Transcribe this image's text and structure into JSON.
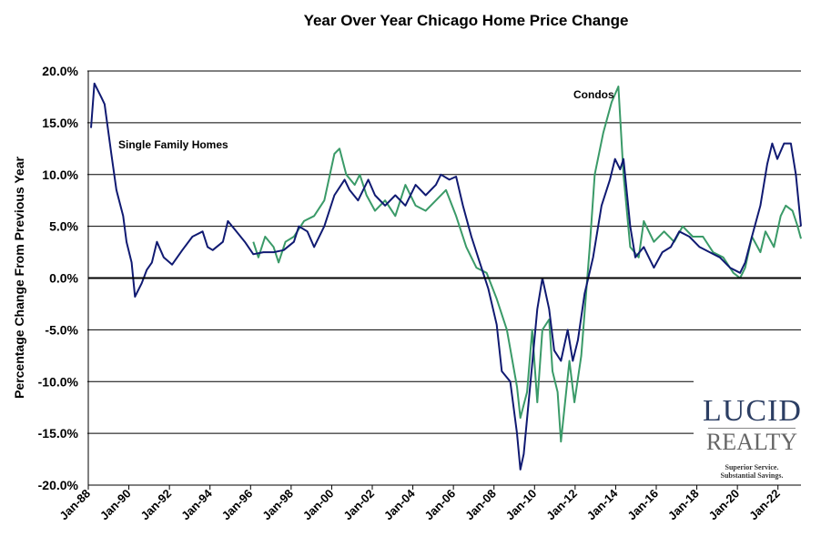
{
  "chart_data": {
    "type": "line",
    "title": "Year Over Year Chicago Home Price Change",
    "xlabel": "",
    "ylabel": "Percentage Change From Previous Year",
    "ylim": [
      -20,
      20
    ],
    "xlim": [
      "1988-01",
      "2023-01"
    ],
    "y_ticks": [
      "-20.0%",
      "-15.0%",
      "-10.0%",
      "-5.0%",
      "0.0%",
      "5.0%",
      "10.0%",
      "15.0%",
      "20.0%"
    ],
    "y_tick_values": [
      -20,
      -15,
      -10,
      -5,
      0,
      5,
      10,
      15,
      20
    ],
    "x_ticks": [
      "Jan-88",
      "Jan-90",
      "Jan-92",
      "Jan-94",
      "Jan-96",
      "Jan-98",
      "Jan-00",
      "Jan-02",
      "Jan-04",
      "Jan-06",
      "Jan-08",
      "Jan-10",
      "Jan-12",
      "Jan-14",
      "Jan-16",
      "Jan-18",
      "Jan-20",
      "Jan-22"
    ],
    "grid": "horizontal",
    "annotations": [
      {
        "text": "Single Family Homes",
        "series": "single_family"
      },
      {
        "text": "Condos",
        "series": "condos"
      }
    ],
    "series": [
      {
        "id": "single_family",
        "color": "#101a72",
        "points": [
          [
            "1988-01",
            14.5
          ],
          [
            "1988-03",
            18.8
          ],
          [
            "1988-07",
            17.5
          ],
          [
            "1988-09",
            16.8
          ],
          [
            "1989-01",
            12
          ],
          [
            "1989-04",
            8.5
          ],
          [
            "1989-08",
            6
          ],
          [
            "1989-10",
            3.5
          ],
          [
            "1990-01",
            1.5
          ],
          [
            "1990-03",
            -1.8
          ],
          [
            "1990-07",
            -0.5
          ],
          [
            "1990-10",
            0.8
          ],
          [
            "1991-01",
            1.5
          ],
          [
            "1991-04",
            3.5
          ],
          [
            "1991-08",
            2
          ],
          [
            "1992-01",
            1.3
          ],
          [
            "1992-07",
            2.7
          ],
          [
            "1993-01",
            4
          ],
          [
            "1993-07",
            4.5
          ],
          [
            "1993-10",
            3
          ],
          [
            "1994-01",
            2.7
          ],
          [
            "1994-07",
            3.5
          ],
          [
            "1994-10",
            5.5
          ],
          [
            "1995-03",
            4.5
          ],
          [
            "1995-08",
            3.5
          ],
          [
            "1996-01",
            2.3
          ],
          [
            "1996-07",
            2.5
          ],
          [
            "1997-01",
            2.5
          ],
          [
            "1997-07",
            2.7
          ],
          [
            "1998-01",
            3.5
          ],
          [
            "1998-04",
            5
          ],
          [
            "1998-09",
            4.5
          ],
          [
            "1999-01",
            3
          ],
          [
            "1999-07",
            5
          ],
          [
            "2000-01",
            8
          ],
          [
            "2000-07",
            9.5
          ],
          [
            "2000-10",
            8.5
          ],
          [
            "2001-03",
            7.5
          ],
          [
            "2001-09",
            9.5
          ],
          [
            "2002-01",
            8
          ],
          [
            "2002-07",
            7
          ],
          [
            "2003-01",
            8
          ],
          [
            "2003-07",
            7
          ],
          [
            "2004-01",
            9
          ],
          [
            "2004-07",
            8
          ],
          [
            "2005-01",
            9
          ],
          [
            "2005-04",
            10
          ],
          [
            "2005-09",
            9.5
          ],
          [
            "2006-01",
            9.8
          ],
          [
            "2006-05",
            7
          ],
          [
            "2006-10",
            4
          ],
          [
            "2007-03",
            1.5
          ],
          [
            "2007-08",
            -1
          ],
          [
            "2008-01",
            -4.5
          ],
          [
            "2008-04",
            -9
          ],
          [
            "2008-09",
            -10
          ],
          [
            "2009-01",
            -15
          ],
          [
            "2009-03",
            -18.5
          ],
          [
            "2009-05",
            -17
          ],
          [
            "2009-09",
            -10
          ],
          [
            "2010-01",
            -3
          ],
          [
            "2010-04",
            0
          ],
          [
            "2010-08",
            -3
          ],
          [
            "2010-11",
            -7
          ],
          [
            "2011-03",
            -8
          ],
          [
            "2011-07",
            -5
          ],
          [
            "2011-10",
            -8
          ],
          [
            "2012-01",
            -6
          ],
          [
            "2012-05",
            -1.5
          ],
          [
            "2012-10",
            2
          ],
          [
            "2013-03",
            7
          ],
          [
            "2013-08",
            9.5
          ],
          [
            "2013-11",
            11.5
          ],
          [
            "2014-02",
            10.5
          ],
          [
            "2014-04",
            11.5
          ],
          [
            "2014-08",
            5
          ],
          [
            "2014-11",
            2
          ],
          [
            "2015-04",
            3
          ],
          [
            "2015-10",
            1
          ],
          [
            "2016-03",
            2.5
          ],
          [
            "2016-08",
            3
          ],
          [
            "2017-01",
            4.5
          ],
          [
            "2017-07",
            4
          ],
          [
            "2018-01",
            3
          ],
          [
            "2018-07",
            2.5
          ],
          [
            "2019-01",
            2
          ],
          [
            "2019-07",
            1
          ],
          [
            "2020-01",
            0.5
          ],
          [
            "2020-04",
            1.5
          ],
          [
            "2020-08",
            4
          ],
          [
            "2021-01",
            7
          ],
          [
            "2021-05",
            11
          ],
          [
            "2021-08",
            13
          ],
          [
            "2021-11",
            11.5
          ],
          [
            "2022-03",
            13
          ],
          [
            "2022-07",
            13
          ],
          [
            "2022-10",
            10
          ],
          [
            "2023-01",
            5
          ]
        ]
      },
      {
        "id": "condos",
        "color": "#3a9a68",
        "points": [
          [
            "1996-01",
            3.5
          ],
          [
            "1996-04",
            2
          ],
          [
            "1996-08",
            4
          ],
          [
            "1997-01",
            3
          ],
          [
            "1997-04",
            1.5
          ],
          [
            "1997-08",
            3.5
          ],
          [
            "1998-01",
            4
          ],
          [
            "1998-07",
            5.5
          ],
          [
            "1999-01",
            6
          ],
          [
            "1999-07",
            7.5
          ],
          [
            "2000-01",
            12
          ],
          [
            "2000-04",
            12.5
          ],
          [
            "2000-08",
            10
          ],
          [
            "2001-01",
            9
          ],
          [
            "2001-04",
            10
          ],
          [
            "2001-08",
            8
          ],
          [
            "2002-01",
            6.5
          ],
          [
            "2002-07",
            7.5
          ],
          [
            "2003-01",
            6
          ],
          [
            "2003-07",
            9
          ],
          [
            "2004-01",
            7
          ],
          [
            "2004-07",
            6.5
          ],
          [
            "2005-01",
            7.5
          ],
          [
            "2005-07",
            8.5
          ],
          [
            "2006-01",
            6
          ],
          [
            "2006-07",
            3
          ],
          [
            "2007-01",
            1
          ],
          [
            "2007-07",
            0.5
          ],
          [
            "2008-01",
            -2
          ],
          [
            "2008-07",
            -5
          ],
          [
            "2009-01",
            -10.5
          ],
          [
            "2009-03",
            -13.5
          ],
          [
            "2009-07",
            -11
          ],
          [
            "2009-10",
            -5
          ],
          [
            "2010-01",
            -12
          ],
          [
            "2010-04",
            -5
          ],
          [
            "2010-08",
            -4
          ],
          [
            "2010-10",
            -9
          ],
          [
            "2011-01",
            -11
          ],
          [
            "2011-03",
            -15.8
          ],
          [
            "2011-08",
            -8
          ],
          [
            "2011-11",
            -12
          ],
          [
            "2012-03",
            -7.5
          ],
          [
            "2012-08",
            3
          ],
          [
            "2012-11",
            10
          ],
          [
            "2013-04",
            14
          ],
          [
            "2013-09",
            17
          ],
          [
            "2014-01",
            18.5
          ],
          [
            "2014-04",
            10
          ],
          [
            "2014-08",
            3
          ],
          [
            "2015-01",
            2
          ],
          [
            "2015-04",
            5.5
          ],
          [
            "2015-10",
            3.5
          ],
          [
            "2016-04",
            4.5
          ],
          [
            "2016-10",
            3.5
          ],
          [
            "2017-03",
            5
          ],
          [
            "2017-09",
            4
          ],
          [
            "2018-03",
            4
          ],
          [
            "2018-09",
            2.5
          ],
          [
            "2019-03",
            2
          ],
          [
            "2019-09",
            0.5
          ],
          [
            "2020-01",
            0
          ],
          [
            "2020-04",
            1
          ],
          [
            "2020-08",
            4
          ],
          [
            "2021-01",
            2.5
          ],
          [
            "2021-04",
            4.5
          ],
          [
            "2021-09",
            3
          ],
          [
            "2022-01",
            6
          ],
          [
            "2022-04",
            7
          ],
          [
            "2022-08",
            6.5
          ],
          [
            "2022-11",
            5
          ],
          [
            "2023-01",
            3.8
          ]
        ]
      }
    ]
  },
  "logo": {
    "line1": "LUCID",
    "line2": "REALTY",
    "tagline1": "Superior Service.",
    "tagline2": "Substantial Savings."
  }
}
